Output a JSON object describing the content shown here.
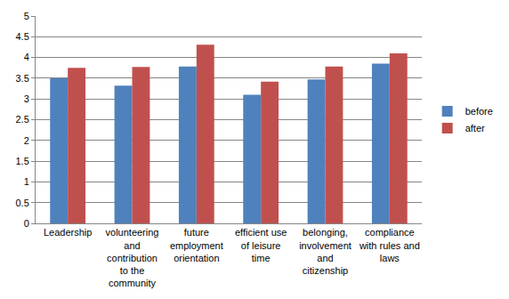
{
  "chart_data": {
    "type": "bar",
    "categories": [
      "Leadership",
      "volunteering and contribution to the community",
      "future employment orientation",
      "efficient use of leisure time",
      "belonging, involvement and citizenship",
      "compliance with rules and laws"
    ],
    "series": [
      {
        "name": "before",
        "color": "#4f81bd",
        "values": [
          3.5,
          3.32,
          3.78,
          3.1,
          3.47,
          3.85
        ]
      },
      {
        "name": "after",
        "color": "#c0504d",
        "values": [
          3.75,
          3.77,
          4.31,
          3.42,
          3.78,
          4.1
        ]
      }
    ],
    "ylim": [
      0,
      5
    ],
    "yticks": [
      0,
      0.5,
      1,
      1.5,
      2,
      2.5,
      3,
      3.5,
      4,
      4.5,
      5
    ],
    "grid": true,
    "legend": "right"
  }
}
